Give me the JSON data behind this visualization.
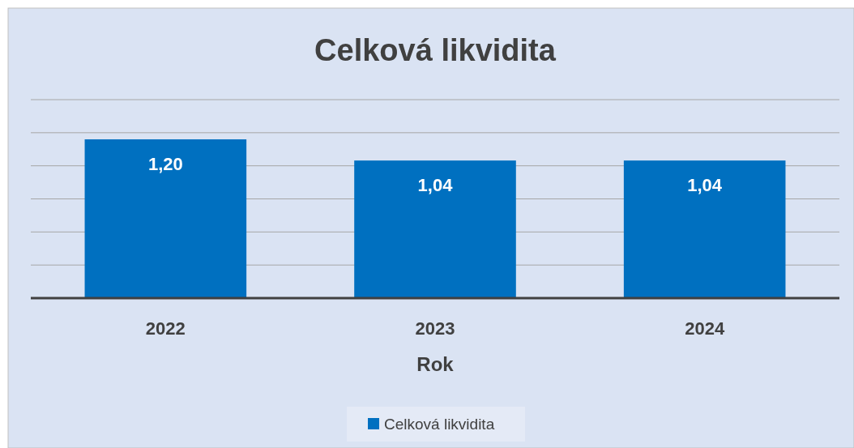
{
  "chart_data": {
    "type": "bar",
    "title": "Celková likvidita",
    "xlabel": "Rok",
    "categories": [
      "2022",
      "2023",
      "2024"
    ],
    "series": [
      {
        "name": "Celková likvidita",
        "color": "#0070c0",
        "values": [
          1.2,
          1.04,
          1.04
        ],
        "value_labels": [
          "1,20",
          "1,04",
          "1,04"
        ]
      }
    ],
    "tick_labels": "x",
    "legend": "bottom"
  }
}
